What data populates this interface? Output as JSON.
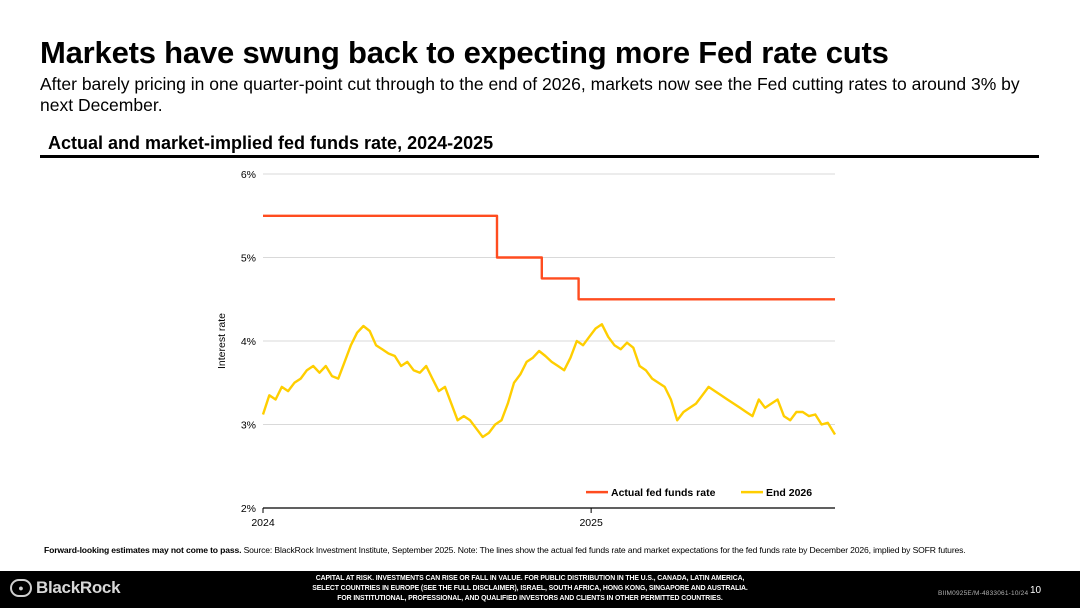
{
  "header": {
    "title": "Markets have swung back to expecting more Fed rate cuts",
    "subtitle": "After barely pricing in one quarter-point cut through to the end of 2026, markets now see the Fed cutting rates to around 3% by next December."
  },
  "chart_data": {
    "type": "line",
    "title": "Actual and market-implied fed funds rate, 2024-2025",
    "ylabel": "Interest rate",
    "ylim": [
      2,
      6
    ],
    "y_ticks": [
      "2%",
      "3%",
      "4%",
      "5%",
      "6%"
    ],
    "y_tick_values": [
      2,
      3,
      4,
      5,
      6
    ],
    "x_ticks": [
      "2024",
      "2025"
    ],
    "x_tick_values": [
      "2024-01-01",
      "2025-01-01"
    ],
    "xlim": [
      "2024-01-01",
      "2025-09-30"
    ],
    "grid": true,
    "legend_position": "bottom-right",
    "series": [
      {
        "name": "Actual fed funds rate",
        "color": "#ff4c1f",
        "step": true,
        "x": [
          "2024-01-01",
          "2024-09-18",
          "2024-11-07",
          "2024-12-18",
          "2025-09-30"
        ],
        "y": [
          5.5,
          5.0,
          4.75,
          4.5,
          4.5
        ]
      },
      {
        "name": "End 2026",
        "color": "#ffce00",
        "step": false,
        "x": [
          "2024-01-01",
          "2024-01-08",
          "2024-01-15",
          "2024-01-22",
          "2024-01-29",
          "2024-02-05",
          "2024-02-12",
          "2024-02-19",
          "2024-02-26",
          "2024-03-04",
          "2024-03-11",
          "2024-03-18",
          "2024-03-25",
          "2024-04-01",
          "2024-04-08",
          "2024-04-15",
          "2024-04-22",
          "2024-04-29",
          "2024-05-06",
          "2024-05-13",
          "2024-05-20",
          "2024-05-27",
          "2024-06-03",
          "2024-06-10",
          "2024-06-17",
          "2024-06-24",
          "2024-07-01",
          "2024-07-08",
          "2024-07-15",
          "2024-07-22",
          "2024-07-29",
          "2024-08-05",
          "2024-08-12",
          "2024-08-19",
          "2024-08-26",
          "2024-09-02",
          "2024-09-09",
          "2024-09-16",
          "2024-09-23",
          "2024-09-30",
          "2024-10-07",
          "2024-10-14",
          "2024-10-21",
          "2024-10-28",
          "2024-11-04",
          "2024-11-11",
          "2024-11-18",
          "2024-11-25",
          "2024-12-02",
          "2024-12-09",
          "2024-12-16",
          "2024-12-23",
          "2024-12-30",
          "2025-01-06",
          "2025-01-13",
          "2025-01-20",
          "2025-01-27",
          "2025-02-03",
          "2025-02-10",
          "2025-02-17",
          "2025-02-24",
          "2025-03-03",
          "2025-03-10",
          "2025-03-17",
          "2025-03-24",
          "2025-03-31",
          "2025-04-07",
          "2025-04-14",
          "2025-04-21",
          "2025-04-28",
          "2025-05-05",
          "2025-05-12",
          "2025-05-19",
          "2025-05-26",
          "2025-06-02",
          "2025-06-09",
          "2025-06-16",
          "2025-06-23",
          "2025-06-30",
          "2025-07-07",
          "2025-07-14",
          "2025-07-21",
          "2025-07-28",
          "2025-08-04",
          "2025-08-11",
          "2025-08-18",
          "2025-08-25",
          "2025-09-01",
          "2025-09-08",
          "2025-09-15",
          "2025-09-22",
          "2025-09-30"
        ],
        "y": [
          3.12,
          3.35,
          3.3,
          3.45,
          3.4,
          3.5,
          3.55,
          3.65,
          3.7,
          3.62,
          3.7,
          3.58,
          3.55,
          3.75,
          3.95,
          4.1,
          4.18,
          4.12,
          3.95,
          3.9,
          3.85,
          3.82,
          3.7,
          3.75,
          3.65,
          3.62,
          3.7,
          3.55,
          3.4,
          3.45,
          3.25,
          3.05,
          3.1,
          3.05,
          2.95,
          2.85,
          2.9,
          3.0,
          3.05,
          3.25,
          3.5,
          3.6,
          3.75,
          3.8,
          3.88,
          3.82,
          3.75,
          3.7,
          3.65,
          3.8,
          4.0,
          3.95,
          4.05,
          4.15,
          4.2,
          4.05,
          3.95,
          3.9,
          3.98,
          3.92,
          3.7,
          3.65,
          3.55,
          3.5,
          3.45,
          3.3,
          3.05,
          3.15,
          3.2,
          3.25,
          3.35,
          3.45,
          3.4,
          3.35,
          3.3,
          3.25,
          3.2,
          3.15,
          3.1,
          3.3,
          3.2,
          3.25,
          3.3,
          3.1,
          3.05,
          3.15,
          3.15,
          3.1,
          3.12,
          3.0,
          3.02,
          2.88
        ]
      }
    ]
  },
  "footnote": {
    "lead": "Forward-looking estimates may not come to pass.",
    "body": " Source: BlackRock Investment Institute, September 2025. Note: The lines show the actual fed funds rate and market expectations for the fed funds rate by December 2026, implied by SOFR futures."
  },
  "footer": {
    "logo": "BlackRock",
    "disclaimer_lines": [
      "CAPITAL AT RISK. INVESTMENTS CAN RISE OR FALL IN VALUE. FOR PUBLIC DISTRIBUTION IN THE U.S., CANADA, LATIN AMERICA,",
      "SELECT COUNTRIES IN EUROPE (SEE THE FULL DISCLAIMER), ISRAEL, SOUTH AFRICA, HONG KONG, SINGAPORE AND AUSTRALIA.",
      "FOR INSTITUTIONAL, PROFESSIONAL, AND QUALIFIED INVESTORS AND CLIENTS IN OTHER PERMITTED COUNTRIES."
    ],
    "page_number": "10",
    "doc_code": "BIIM0925E/M-4833061-10/24"
  }
}
